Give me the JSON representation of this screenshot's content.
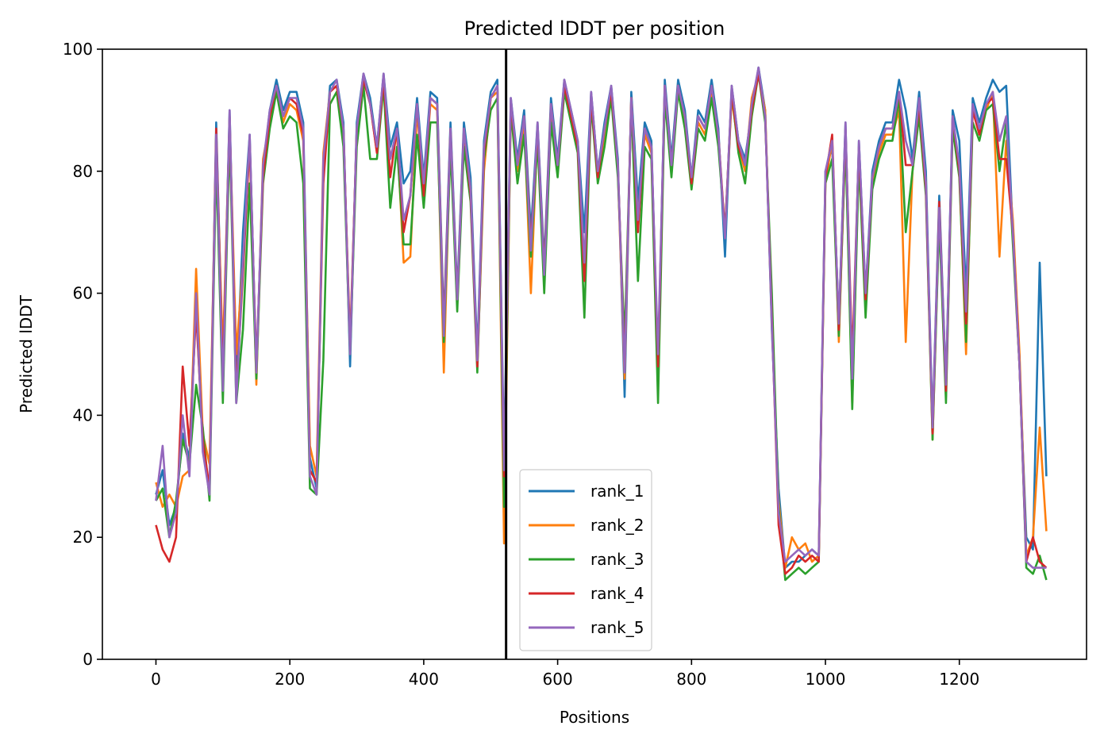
{
  "chart_data": {
    "type": "line",
    "title": "Predicted lDDT per position",
    "xlabel": "Positions",
    "ylabel": "Predicted lDDT",
    "xlim": [
      -80,
      1390
    ],
    "ylim": [
      0,
      100
    ],
    "xticks": [
      0,
      200,
      400,
      600,
      800,
      1000,
      1200
    ],
    "yticks": [
      0,
      20,
      40,
      60,
      80,
      100
    ],
    "legend_position": "lower-center",
    "vertical_marker": {
      "x": 523,
      "color": "#000000"
    },
    "x": [
      0,
      10,
      20,
      30,
      40,
      50,
      60,
      70,
      80,
      90,
      100,
      110,
      120,
      130,
      140,
      150,
      160,
      170,
      180,
      190,
      200,
      210,
      220,
      230,
      240,
      250,
      260,
      270,
      280,
      290,
      300,
      310,
      320,
      330,
      340,
      350,
      360,
      370,
      380,
      390,
      400,
      410,
      420,
      430,
      440,
      450,
      460,
      470,
      480,
      490,
      500,
      510,
      520,
      530,
      540,
      550,
      560,
      570,
      580,
      590,
      600,
      610,
      620,
      630,
      640,
      650,
      660,
      670,
      680,
      690,
      700,
      710,
      720,
      730,
      740,
      750,
      760,
      770,
      780,
      790,
      800,
      810,
      820,
      830,
      840,
      850,
      860,
      870,
      880,
      890,
      900,
      910,
      920,
      930,
      940,
      950,
      960,
      970,
      980,
      990,
      1000,
      1010,
      1020,
      1030,
      1040,
      1050,
      1060,
      1070,
      1080,
      1090,
      1100,
      1110,
      1120,
      1130,
      1140,
      1150,
      1160,
      1170,
      1180,
      1190,
      1200,
      1210,
      1220,
      1230,
      1240,
      1250,
      1260,
      1270,
      1280,
      1290,
      1300,
      1310,
      1320,
      1330
    ],
    "series": [
      {
        "name": "rank_1",
        "color": "#1f77b4",
        "values": [
          27,
          31,
          22,
          25,
          37,
          33,
          58,
          35,
          28,
          88,
          47,
          90,
          45,
          70,
          86,
          47,
          80,
          90,
          95,
          90,
          93,
          93,
          88,
          33,
          28,
          80,
          94,
          95,
          88,
          48,
          88,
          96,
          92,
          84,
          96,
          84,
          88,
          78,
          80,
          92,
          79,
          93,
          92,
          55,
          88,
          60,
          88,
          79,
          50,
          85,
          93,
          95,
          33,
          92,
          82,
          90,
          70,
          88,
          65,
          92,
          82,
          95,
          90,
          85,
          70,
          93,
          80,
          88,
          94,
          82,
          43,
          93,
          75,
          88,
          85,
          47,
          95,
          82,
          95,
          90,
          79,
          90,
          88,
          95,
          87,
          66,
          94,
          85,
          82,
          90,
          97,
          90,
          54,
          28,
          15,
          16,
          16,
          17,
          18,
          17,
          80,
          84,
          55,
          88,
          44,
          85,
          60,
          80,
          85,
          88,
          88,
          95,
          90,
          82,
          93,
          80,
          38,
          76,
          45,
          90,
          85,
          60,
          92,
          88,
          92,
          95,
          93,
          94,
          70,
          48,
          20,
          18,
          65,
          30
        ]
      },
      {
        "name": "rank_2",
        "color": "#ff7f0e",
        "values": [
          29,
          25,
          27,
          25,
          30,
          31,
          64,
          37,
          32,
          85,
          50,
          88,
          50,
          65,
          84,
          45,
          82,
          88,
          94,
          88,
          91,
          90,
          85,
          35,
          30,
          83,
          93,
          94,
          86,
          52,
          86,
          95,
          91,
          83,
          95,
          82,
          86,
          65,
          66,
          90,
          77,
          91,
          90,
          47,
          86,
          58,
          86,
          77,
          48,
          80,
          92,
          93,
          19,
          91,
          80,
          88,
          60,
          87,
          62,
          90,
          80,
          94,
          89,
          84,
          62,
          92,
          79,
          86,
          93,
          80,
          46,
          92,
          72,
          86,
          83,
          48,
          93,
          80,
          94,
          88,
          78,
          88,
          86,
          93,
          85,
          70,
          92,
          84,
          80,
          92,
          96,
          90,
          55,
          26,
          15,
          20,
          18,
          19,
          16,
          17,
          78,
          85,
          52,
          86,
          42,
          83,
          58,
          78,
          83,
          86,
          86,
          90,
          52,
          80,
          90,
          78,
          36,
          73,
          43,
          88,
          80,
          50,
          90,
          86,
          90,
          93,
          66,
          85,
          72,
          50,
          17,
          20,
          38,
          21
        ]
      },
      {
        "name": "rank_3",
        "color": "#2ca02c",
        "values": [
          26,
          28,
          20,
          26,
          36,
          32,
          45,
          38,
          26,
          82,
          42,
          86,
          42,
          54,
          78,
          46,
          78,
          87,
          93,
          87,
          89,
          88,
          78,
          28,
          27,
          49,
          91,
          93,
          84,
          50,
          84,
          94,
          82,
          82,
          94,
          74,
          84,
          68,
          68,
          86,
          74,
          88,
          88,
          52,
          84,
          57,
          84,
          75,
          47,
          82,
          90,
          92,
          25,
          90,
          78,
          86,
          66,
          85,
          60,
          88,
          79,
          93,
          88,
          83,
          56,
          91,
          78,
          84,
          92,
          79,
          52,
          91,
          62,
          84,
          82,
          42,
          92,
          79,
          93,
          87,
          77,
          87,
          85,
          92,
          84,
          70,
          93,
          83,
          78,
          89,
          96,
          88,
          60,
          25,
          13,
          14,
          15,
          14,
          15,
          16,
          78,
          82,
          53,
          85,
          41,
          82,
          56,
          77,
          82,
          85,
          85,
          92,
          70,
          80,
          89,
          76,
          36,
          72,
          42,
          87,
          79,
          52,
          88,
          85,
          90,
          91,
          80,
          88,
          68,
          48,
          15,
          14,
          17,
          13
        ]
      },
      {
        "name": "rank_4",
        "color": "#d62728",
        "values": [
          22,
          18,
          16,
          20,
          48,
          35,
          57,
          36,
          28,
          87,
          46,
          89,
          44,
          63,
          85,
          48,
          79,
          89,
          94,
          89,
          92,
          91,
          86,
          31,
          29,
          78,
          93,
          94,
          87,
          51,
          87,
          95,
          91,
          83,
          95,
          79,
          87,
          70,
          76,
          91,
          76,
          92,
          91,
          54,
          87,
          59,
          87,
          76,
          48,
          83,
          92,
          94,
          30,
          91,
          81,
          89,
          68,
          87,
          64,
          91,
          81,
          94,
          89,
          84,
          62,
          92,
          79,
          87,
          93,
          81,
          48,
          92,
          70,
          87,
          84,
          48,
          94,
          81,
          94,
          89,
          78,
          89,
          87,
          94,
          86,
          70,
          93,
          84,
          81,
          90,
          96,
          89,
          56,
          22,
          14,
          15,
          17,
          16,
          17,
          16,
          79,
          86,
          54,
          87,
          49,
          84,
          59,
          79,
          84,
          87,
          87,
          93,
          81,
          81,
          91,
          77,
          37,
          75,
          44,
          89,
          80,
          55,
          90,
          86,
          91,
          92,
          82,
          82,
          70,
          48,
          16,
          20,
          16,
          15
        ]
      },
      {
        "name": "rank_5",
        "color": "#9467bd",
        "values": [
          26,
          35,
          20,
          24,
          40,
          30,
          60,
          34,
          27,
          86,
          44,
          90,
          42,
          65,
          86,
          47,
          81,
          90,
          94,
          89,
          92,
          92,
          87,
          30,
          27,
          82,
          93,
          95,
          87,
          50,
          87,
          96,
          91,
          84,
          96,
          82,
          87,
          72,
          76,
          91,
          78,
          92,
          91,
          53,
          87,
          59,
          87,
          77,
          49,
          84,
          92,
          94,
          31,
          92,
          81,
          89,
          67,
          88,
          63,
          91,
          81,
          95,
          90,
          85,
          65,
          93,
          80,
          87,
          94,
          81,
          47,
          92,
          72,
          87,
          84,
          50,
          94,
          81,
          94,
          89,
          79,
          89,
          87,
          94,
          86,
          69,
          94,
          85,
          81,
          91,
          97,
          89,
          55,
          24,
          16,
          17,
          18,
          17,
          18,
          17,
          80,
          85,
          55,
          88,
          46,
          85,
          60,
          79,
          84,
          87,
          87,
          93,
          85,
          81,
          92,
          78,
          38,
          74,
          45,
          89,
          81,
          57,
          91,
          87,
          91,
          93,
          85,
          89,
          70,
          48,
          16,
          15,
          15,
          15
        ]
      }
    ]
  }
}
